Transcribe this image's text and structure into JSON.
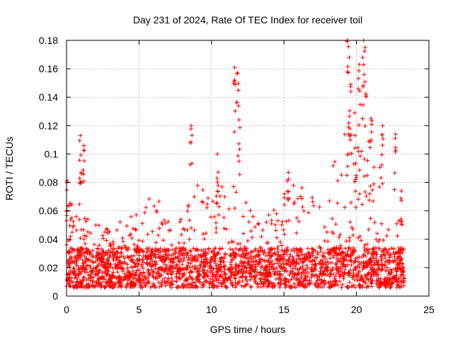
{
  "chart_data": {
    "type": "scatter",
    "title": "Day 231 of 2024, Rate Of TEC Index for receiver toil",
    "xlabel": "GPS time / hours",
    "ylabel": "ROTI / TECUs",
    "xlim": [
      0,
      25
    ],
    "ylim": [
      0,
      0.18
    ],
    "x_ticks": [
      0,
      5,
      10,
      15,
      20,
      25
    ],
    "y_ticks": [
      0,
      0.02,
      0.04,
      0.06,
      0.08,
      0.1,
      0.12,
      0.14,
      0.16,
      0.18
    ],
    "x_tick_labels": [
      "0",
      "5",
      "10",
      "15",
      "20",
      "25"
    ],
    "y_tick_labels": [
      "0",
      "0.02",
      "0.04",
      "0.06",
      "0.08",
      "0.1",
      "0.12",
      "0.14",
      "0.16",
      "0.18"
    ],
    "grid": true,
    "marker": "+",
    "series_color": "#ff0000",
    "data_range_hours": [
      0,
      23.3
    ],
    "notable_peaks": [
      {
        "x": 0.05,
        "y": 0.081
      },
      {
        "x": 0.95,
        "y": 0.113
      },
      {
        "x": 1.2,
        "y": 0.106
      },
      {
        "x": 8.6,
        "y": 0.12
      },
      {
        "x": 10.4,
        "y": 0.1
      },
      {
        "x": 11.6,
        "y": 0.161
      },
      {
        "x": 11.8,
        "y": 0.157
      },
      {
        "x": 11.9,
        "y": 0.124
      },
      {
        "x": 15.3,
        "y": 0.087
      },
      {
        "x": 19.4,
        "y": 0.18
      },
      {
        "x": 19.5,
        "y": 0.168
      },
      {
        "x": 19.6,
        "y": 0.149
      },
      {
        "x": 19.9,
        "y": 0.113
      },
      {
        "x": 20.2,
        "y": 0.163
      },
      {
        "x": 20.5,
        "y": 0.18
      },
      {
        "x": 20.6,
        "y": 0.175
      },
      {
        "x": 21.0,
        "y": 0.125
      },
      {
        "x": 21.8,
        "y": 0.12
      },
      {
        "x": 22.7,
        "y": 0.114
      },
      {
        "x": 23.1,
        "y": 0.074
      }
    ],
    "envelope": [
      {
        "x": 0,
        "y": 0.07
      },
      {
        "x": 0.5,
        "y": 0.06
      },
      {
        "x": 1,
        "y": 0.085
      },
      {
        "x": 1.5,
        "y": 0.055
      },
      {
        "x": 2,
        "y": 0.045
      },
      {
        "x": 3,
        "y": 0.04
      },
      {
        "x": 4,
        "y": 0.05
      },
      {
        "x": 5,
        "y": 0.06
      },
      {
        "x": 6,
        "y": 0.065
      },
      {
        "x": 7,
        "y": 0.055
      },
      {
        "x": 8,
        "y": 0.05
      },
      {
        "x": 8.7,
        "y": 0.075
      },
      {
        "x": 9.5,
        "y": 0.07
      },
      {
        "x": 10.5,
        "y": 0.075
      },
      {
        "x": 11.5,
        "y": 0.08
      },
      {
        "x": 12.5,
        "y": 0.065
      },
      {
        "x": 13.5,
        "y": 0.045
      },
      {
        "x": 14.5,
        "y": 0.06
      },
      {
        "x": 15.5,
        "y": 0.075
      },
      {
        "x": 16.5,
        "y": 0.07
      },
      {
        "x": 17.5,
        "y": 0.06
      },
      {
        "x": 18.5,
        "y": 0.09
      },
      {
        "x": 19.5,
        "y": 0.125
      },
      {
        "x": 20.3,
        "y": 0.13
      },
      {
        "x": 21,
        "y": 0.1
      },
      {
        "x": 21.8,
        "y": 0.08
      },
      {
        "x": 22.5,
        "y": 0.06
      },
      {
        "x": 23.3,
        "y": 0.045
      }
    ]
  }
}
